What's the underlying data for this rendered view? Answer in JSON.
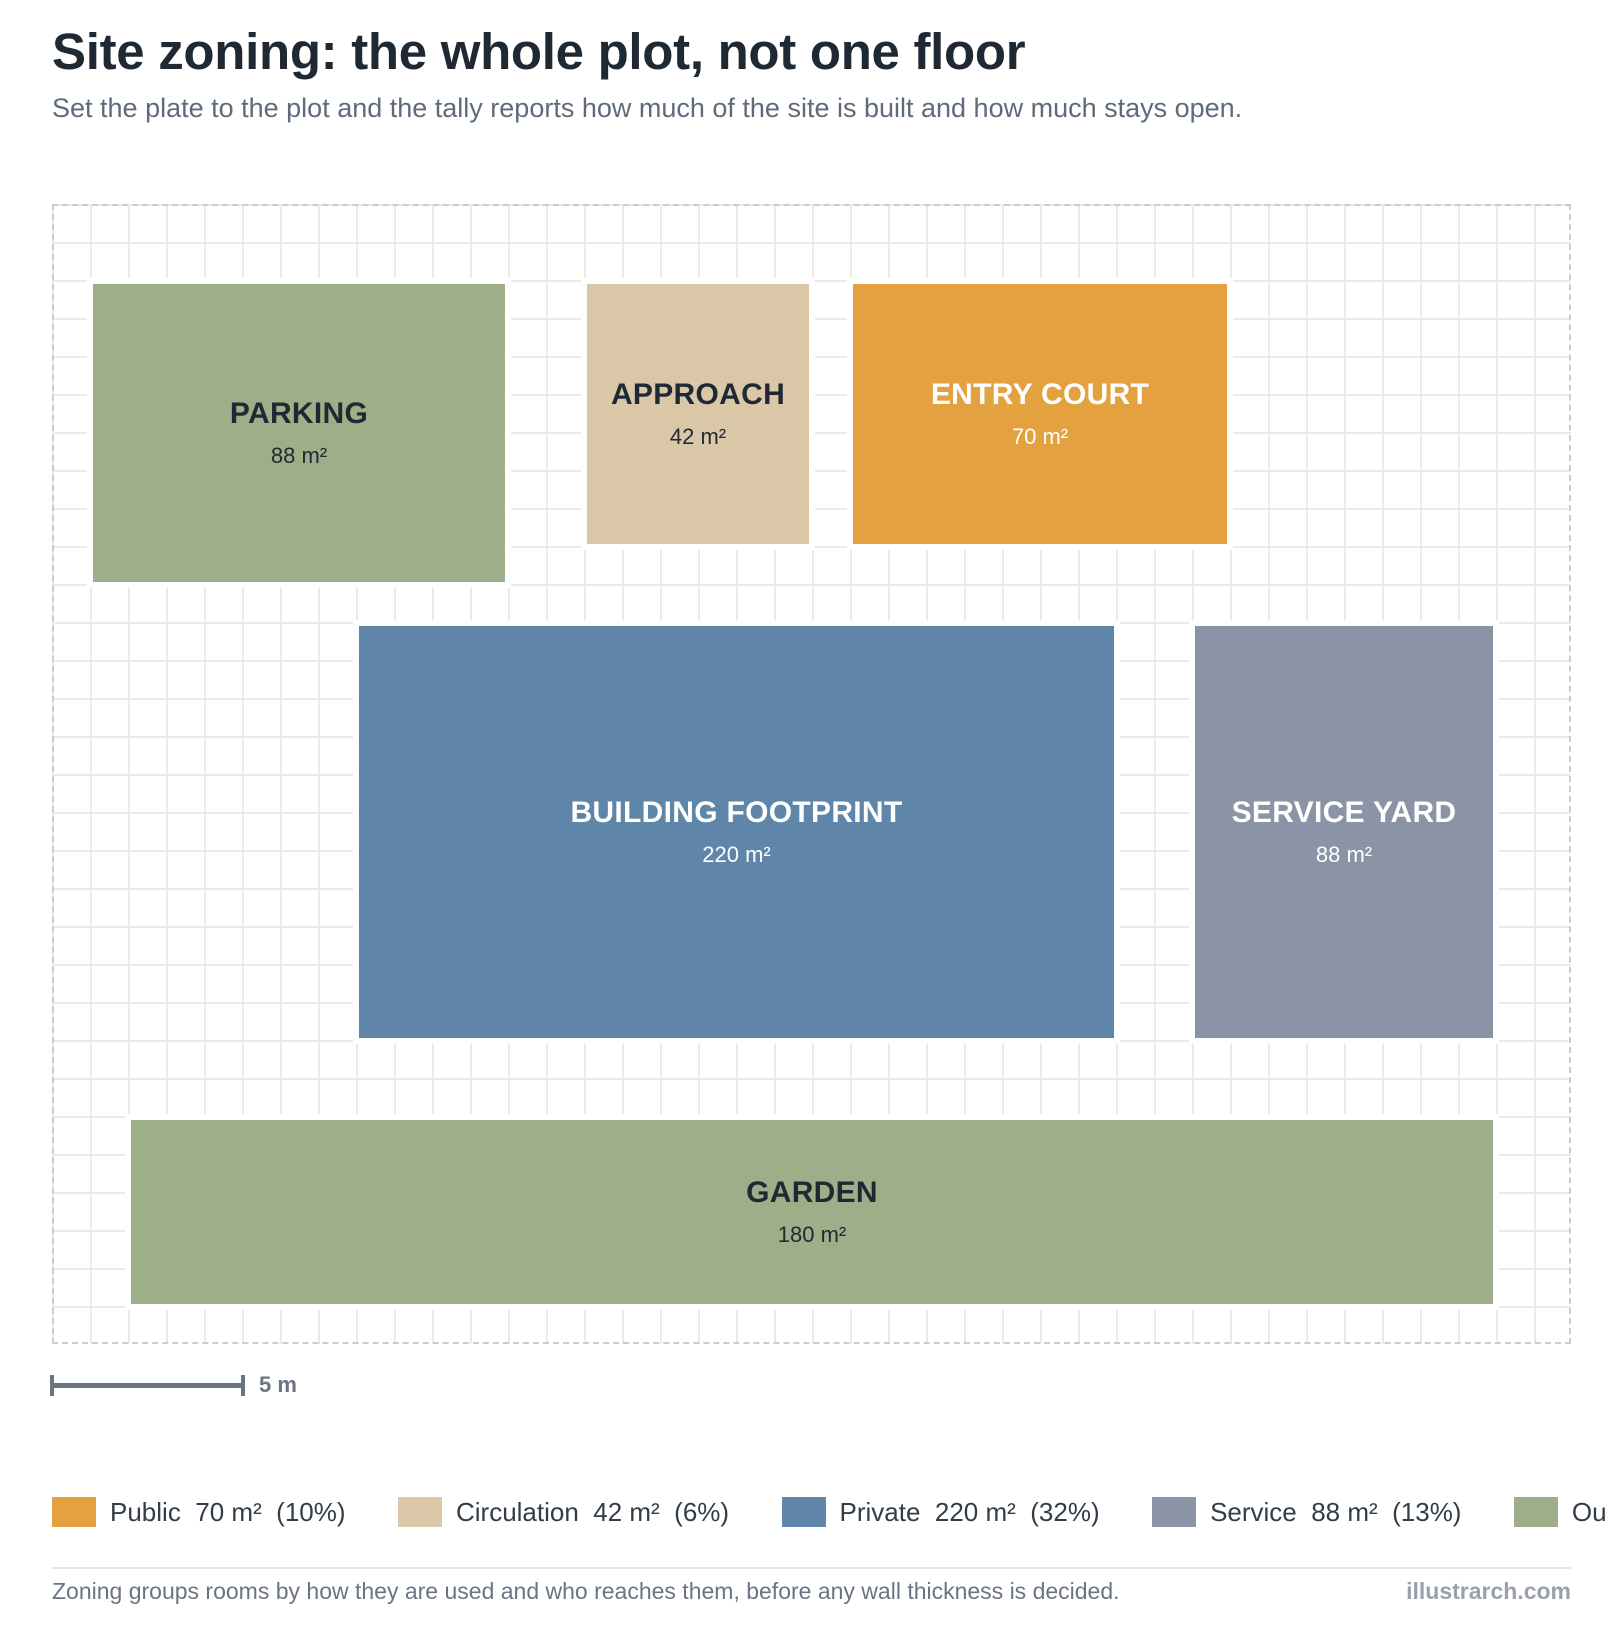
{
  "title": "Site zoning: the whole plot, not one floor",
  "subtitle": "Set the plate to the plot and the tally reports how much of the site is built and how much stays open.",
  "zones": [
    {
      "id": "parking",
      "name": "PARKING",
      "area": "88 m²",
      "category": "Outdoor",
      "color": "#9caf88"
    },
    {
      "id": "approach",
      "name": "APPROACH",
      "area": "42 m²",
      "category": "Circulation",
      "color": "#d9c7a7"
    },
    {
      "id": "entry-court",
      "name": "ENTRY COURT",
      "area": "70 m²",
      "category": "Public",
      "color": "#e3a13f"
    },
    {
      "id": "building-footprint",
      "name": "BUILDING FOOTPRINT",
      "area": "220 m²",
      "category": "Private",
      "color": "#5f86a9"
    },
    {
      "id": "service-yard",
      "name": "SERVICE YARD",
      "area": "88 m²",
      "category": "Service",
      "color": "#8b93a6"
    },
    {
      "id": "garden",
      "name": "GARDEN",
      "area": "180 m²",
      "category": "Outdoor",
      "color": "#9caf88"
    }
  ],
  "scale": {
    "label": "5 m"
  },
  "legend": [
    {
      "label": "Public  70 m²  (10%)",
      "color": "#e3a13f"
    },
    {
      "label": "Circulation  42 m²  (6%)",
      "color": "#d9c7a7"
    },
    {
      "label": "Private  220 m²  (32%)",
      "color": "#5f86a9"
    },
    {
      "label": "Service  88 m²  (13%)",
      "color": "#8b93a6"
    },
    {
      "label": "Ou",
      "color": "#9caf88"
    }
  ],
  "caption": "Zoning groups rooms by how they are used and who reaches them, before any wall thickness is decided.",
  "credit": "illustrarch.com"
}
